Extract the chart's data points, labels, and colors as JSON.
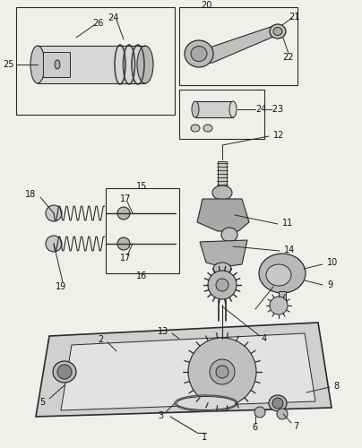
{
  "bg": "#f0f0eb",
  "lc": "#2a2a2a",
  "fig_w": 4.04,
  "fig_h": 5.0,
  "dpi": 100
}
